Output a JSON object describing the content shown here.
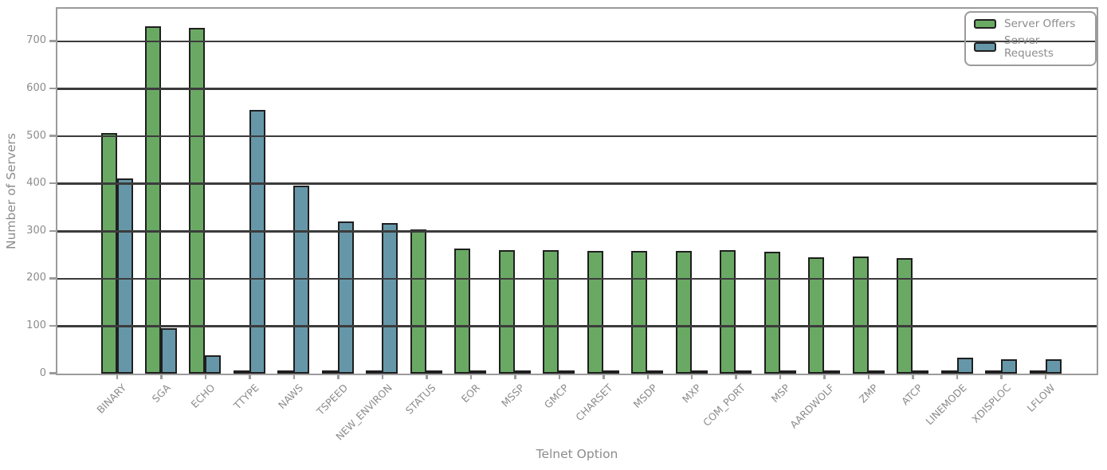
{
  "chart_data": {
    "type": "bar",
    "title": "",
    "xlabel": "Telnet Option",
    "ylabel": "Number of Servers",
    "categories": [
      "BINARY",
      "SGA",
      "ECHO",
      "TTYPE",
      "NAWS",
      "TSPEED",
      "NEW_ENVIRON",
      "STATUS",
      "EOR",
      "MSSP",
      "GMCP",
      "CHARSET",
      "MSDP",
      "MXP",
      "COM_PORT",
      "MSP",
      "AARDWOLF",
      "ZMP",
      "ATCP",
      "LINEMODE",
      "XDISPLOC",
      "LFLOW"
    ],
    "series": [
      {
        "name": "Server Offers",
        "color": "#6aa964",
        "values": [
          507,
          732,
          729,
          1,
          1,
          1,
          1,
          304,
          264,
          261,
          261,
          259,
          259,
          259,
          261,
          256,
          245,
          246,
          244,
          1,
          1,
          1
        ]
      },
      {
        "name": "Server Requests",
        "color": "#6697a9",
        "values": [
          412,
          95,
          39,
          556,
          396,
          320,
          318,
          3,
          6,
          6,
          5,
          7,
          5,
          4,
          1,
          3,
          2,
          2,
          3,
          33,
          30,
          30
        ]
      }
    ],
    "ylim": [
      0,
      767
    ],
    "yticks": [
      0,
      100,
      200,
      300,
      400,
      500,
      600,
      700
    ],
    "grid": true,
    "gridline_color": "#3b3b3b",
    "frame_color": "#9b9b9b",
    "bar_edge_color": "#1f1f1f",
    "text_color": "#8c8c8c",
    "legend_position": "upper right"
  }
}
